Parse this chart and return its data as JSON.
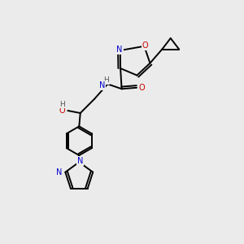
{
  "background_color": "#ebebeb",
  "bond_color": "#000000",
  "atom_colors": {
    "N": "#0000cc",
    "O": "#cc0000",
    "C": "#000000",
    "H": "#555555"
  },
  "figsize": [
    3.0,
    3.0
  ],
  "dpi": 100,
  "lw": 1.4,
  "fs": 7.0
}
